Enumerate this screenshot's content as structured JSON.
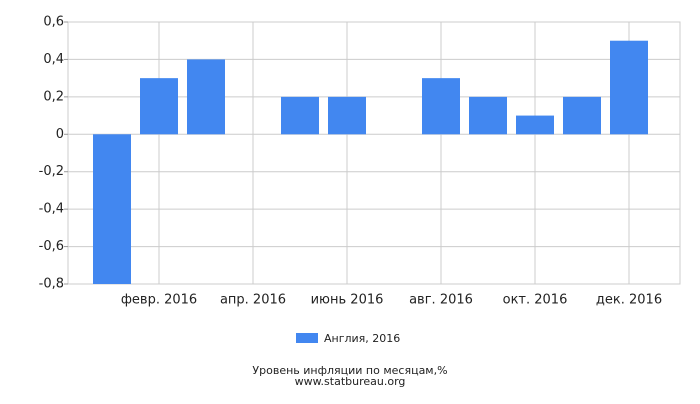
{
  "chart_data": {
    "type": "bar",
    "title": "Уровень инфляции по месяцам,%",
    "subtitle": "www.statbureau.org",
    "categories": [
      null,
      "февр. 2016",
      null,
      "апр. 2016",
      null,
      "июнь 2016",
      null,
      "авг. 2016",
      null,
      "окт. 2016",
      null,
      "дек. 2016"
    ],
    "series": [
      {
        "name": "Англия, 2016",
        "color": "#4287f0",
        "values": [
          -0.8,
          0.3,
          0.4,
          0,
          0.2,
          0.2,
          0,
          0.3,
          0.2,
          0.1,
          0.2,
          0.5
        ]
      }
    ],
    "ylim": [
      -0.8,
      0.6
    ],
    "yticks": [
      {
        "value": -0.8,
        "label": "-0,8"
      },
      {
        "value": -0.6,
        "label": "-0,6"
      },
      {
        "value": -0.4,
        "label": "-0,4"
      },
      {
        "value": -0.2,
        "label": "-0,2"
      },
      0,
      {
        "value": 0.2,
        "label": "0,2"
      },
      {
        "value": 0.4,
        "label": "0,4"
      },
      {
        "value": 0.6,
        "label": "0,6"
      }
    ],
    "grid": true,
    "legend": "bottom"
  }
}
